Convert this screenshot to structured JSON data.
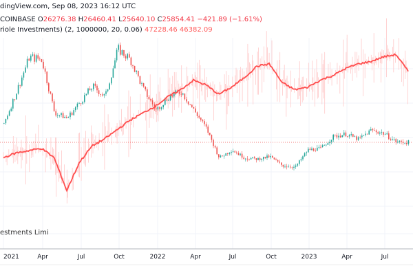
{
  "header": {
    "source": "dingView.com, Sep 08, 2023 16:12 UTC"
  },
  "legend": {
    "symbol": "COINBASE",
    "o_label": "O",
    "o": "26276.38",
    "h_label": "H",
    "h": "26460.41",
    "l_label": "L",
    "l": "25640.10",
    "c_label": "C",
    "c": "25854.41",
    "change": "−421.89 (−1.61%)",
    "indicator_name": "riole Investments) (2, 1000000, 20, 0.06)",
    "ind_v1": "47228.46",
    "ind_v2": "46382.09"
  },
  "watermark": "estments Limi",
  "colors": {
    "up": "#26a69a",
    "down": "#ef5350",
    "indicator": "#ff4d4d",
    "noise": "#ffc8c8",
    "grid": "#f0f3fa"
  },
  "chart_data": {
    "type": "line",
    "x_ticks": [
      "2021",
      "Apr",
      "Jul",
      "Oct",
      "2022",
      "Apr",
      "Jul",
      "Oct",
      "2023",
      "Apr",
      "Jul"
    ],
    "series": [
      {
        "kind": "candlestick",
        "x": [
          "2021-01",
          "2021-02",
          "2021-03",
          "2021-04",
          "2021-05",
          "2021-06",
          "2021-07",
          "2021-08",
          "2021-09",
          "2021-10",
          "2021-11",
          "2021-12",
          "2022-01",
          "2022-02",
          "2022-03",
          "2022-04",
          "2022-05",
          "2022-06",
          "2022-07",
          "2022-08",
          "2022-09",
          "2022-10",
          "2022-11",
          "2022-12",
          "2023-01",
          "2023-02",
          "2023-03",
          "2023-04",
          "2023-05",
          "2023-06",
          "2023-07",
          "2023-08",
          "2023-09"
        ],
        "close": [
          33000,
          45000,
          58000,
          57000,
          37000,
          35000,
          41000,
          47000,
          43000,
          61000,
          57000,
          46000,
          38000,
          43000,
          45000,
          38000,
          31000,
          20000,
          23000,
          20000,
          19500,
          20500,
          17000,
          16500,
          23000,
          23500,
          28000,
          29000,
          27000,
          30500,
          29200,
          26000,
          25854
        ]
      },
      {
        "kind": "indicator",
        "x": [
          "2021-01",
          "2021-02",
          "2021-03",
          "2021-04",
          "2021-05",
          "2021-06",
          "2021-07",
          "2021-08",
          "2021-09",
          "2021-10",
          "2021-11",
          "2021-12",
          "2022-01",
          "2022-02",
          "2022-03",
          "2022-04",
          "2022-05",
          "2022-06",
          "2022-07",
          "2022-08",
          "2022-09",
          "2022-10",
          "2022-11",
          "2022-12",
          "2023-01",
          "2023-02",
          "2023-03",
          "2023-04",
          "2023-05",
          "2023-06",
          "2023-07",
          "2023-08",
          "2023-09"
        ],
        "values": [
          29000,
          30000,
          30500,
          31000,
          29000,
          22000,
          28000,
          31500,
          33000,
          35000,
          37000,
          38500,
          40000,
          42000,
          43500,
          45500,
          44500,
          42500,
          44000,
          46000,
          48500,
          49000,
          45000,
          43500,
          44000,
          45500,
          46500,
          48000,
          49000,
          49500,
          50500,
          51000,
          47228
        ]
      }
    ],
    "grid": true
  }
}
